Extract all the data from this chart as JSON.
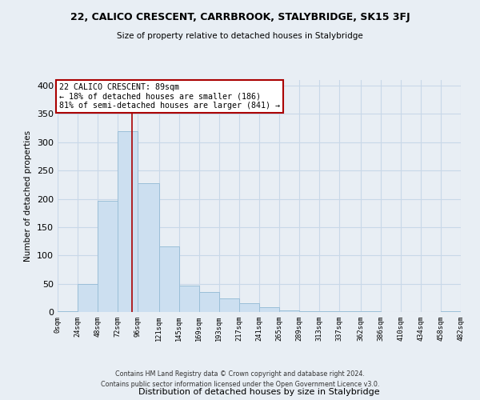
{
  "title": "22, CALICO CRESCENT, CARRBROOK, STALYBRIDGE, SK15 3FJ",
  "subtitle": "Size of property relative to detached houses in Stalybridge",
  "xlabel": "Distribution of detached houses by size in Stalybridge",
  "ylabel": "Number of detached properties",
  "bar_color": "#ccdff0",
  "bar_edge_color": "#9bbfd8",
  "vline_x": 89,
  "vline_color": "#aa0000",
  "annotation_title": "22 CALICO CRESCENT: 89sqm",
  "annotation_line1": "← 18% of detached houses are smaller (186)",
  "annotation_line2": "81% of semi-detached houses are larger (841) →",
  "annotation_box_color": "white",
  "annotation_box_edge": "#aa0000",
  "bin_edges": [
    0,
    24,
    48,
    72,
    96,
    121,
    145,
    169,
    193,
    217,
    241,
    265,
    289,
    313,
    337,
    362,
    386,
    410,
    434,
    458,
    482
  ],
  "bar_heights": [
    2,
    50,
    196,
    320,
    228,
    116,
    46,
    35,
    24,
    15,
    8,
    3,
    2,
    1,
    1,
    1,
    0,
    0,
    0,
    2
  ],
  "ylim": [
    0,
    410
  ],
  "yticks": [
    0,
    50,
    100,
    150,
    200,
    250,
    300,
    350,
    400
  ],
  "xtick_labels": [
    "0sqm",
    "24sqm",
    "48sqm",
    "72sqm",
    "96sqm",
    "121sqm",
    "145sqm",
    "169sqm",
    "193sqm",
    "217sqm",
    "241sqm",
    "265sqm",
    "289sqm",
    "313sqm",
    "337sqm",
    "362sqm",
    "386sqm",
    "410sqm",
    "434sqm",
    "458sqm",
    "482sqm"
  ],
  "footer_line1": "Contains HM Land Registry data © Crown copyright and database right 2024.",
  "footer_line2": "Contains public sector information licensed under the Open Government Licence v3.0.",
  "bg_color": "#e8eef4",
  "grid_color": "#c8d8e8"
}
